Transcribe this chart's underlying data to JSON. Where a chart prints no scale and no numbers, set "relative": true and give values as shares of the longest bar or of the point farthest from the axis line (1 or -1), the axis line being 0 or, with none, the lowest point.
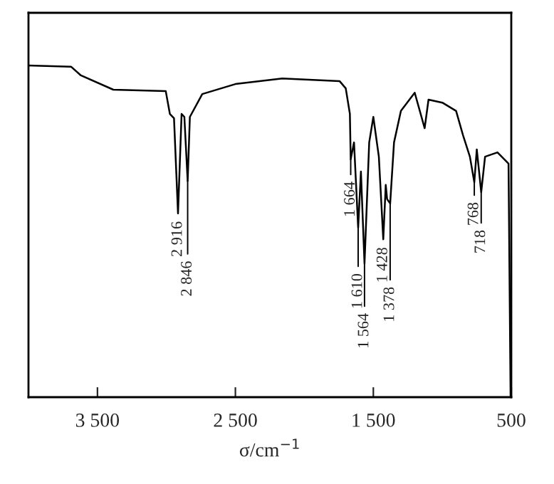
{
  "chart_data": {
    "type": "line",
    "relative": true,
    "xlabel": "σ/cm$^{−1}$",
    "xlim": [
      4000,
      500
    ],
    "xticks": [
      {
        "value": 3500,
        "label": "3 500"
      },
      {
        "value": 2500,
        "label": "2 500"
      },
      {
        "value": 1500,
        "label": "1 500"
      },
      500
    ],
    "x": [
      4000,
      3690,
      3620,
      3385,
      3005,
      2975,
      2945,
      2916,
      2890,
      2870,
      2846,
      2830,
      2740,
      2500,
      2160,
      1745,
      1700,
      1670,
      1664,
      1640,
      1610,
      1590,
      1564,
      1530,
      1500,
      1460,
      1428,
      1410,
      1400,
      1378,
      1350,
      1300,
      1200,
      1128,
      1100,
      1000,
      900,
      850,
      800,
      768,
      750,
      718,
      690,
      600,
      520,
      505,
      500
    ],
    "series": [
      {
        "color": "#000000",
        "values": [
          1.0,
          0.996,
          0.97,
          0.927,
          0.923,
          0.854,
          0.841,
          0.554,
          0.854,
          0.845,
          0.652,
          0.845,
          0.914,
          0.944,
          0.961,
          0.953,
          0.931,
          0.854,
          0.717,
          0.768,
          0.511,
          0.68,
          0.403,
          0.768,
          0.845,
          0.725,
          0.476,
          0.64,
          0.597,
          0.584,
          0.768,
          0.863,
          0.918,
          0.811,
          0.897,
          0.888,
          0.863,
          0.79,
          0.725,
          0.648,
          0.747,
          0.618,
          0.725,
          0.738,
          0.704,
          0.0,
          0.0
        ]
      }
    ],
    "annotations": [
      {
        "text": "2 916",
        "x": 2916,
        "y": 0.554
      },
      {
        "text": "2 846",
        "x": 2846,
        "y": 0.652
      },
      {
        "text": "1 664",
        "x": 1664,
        "y": 0.717
      },
      {
        "text": "1 610",
        "x": 1610,
        "y": 0.511
      },
      {
        "text": "1 564",
        "x": 1564,
        "y": 0.403
      },
      {
        "text": "1 428",
        "x": 1428,
        "y": 0.476
      },
      {
        "text": "1 378",
        "x": 1378,
        "y": 0.584
      },
      {
        "text": "768",
        "x": 768,
        "y": 0.648
      },
      {
        "text": "718",
        "x": 718,
        "y": 0.618
      }
    ],
    "grid": false
  }
}
